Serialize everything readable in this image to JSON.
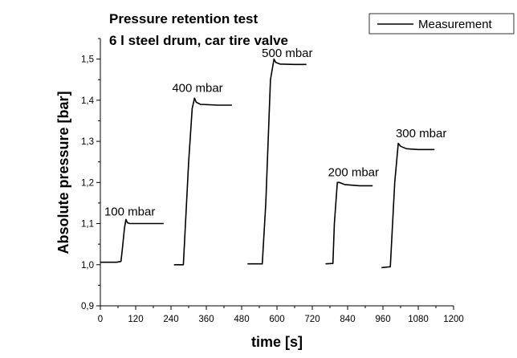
{
  "chart_data": {
    "type": "line",
    "title_lines": [
      "Pressure retention test",
      "6 l steel drum, car tire valve"
    ],
    "xlabel": "time [s]",
    "ylabel": "Absolute pressure [bar]",
    "xlim": [
      0,
      1200
    ],
    "ylim": [
      0.9,
      1.55
    ],
    "x_ticks": [
      0,
      120,
      240,
      360,
      480,
      600,
      720,
      840,
      960,
      1080,
      1200
    ],
    "x_tick_labels": [
      "0",
      "120",
      "240",
      "360",
      "480",
      "600",
      "720",
      "840",
      "960",
      "1080",
      "1200"
    ],
    "y_ticks": [
      0.9,
      1.0,
      1.1,
      1.2,
      1.3,
      1.4,
      1.5
    ],
    "y_tick_labels": [
      "0,9",
      "1,0",
      "1,1",
      "1,2",
      "1,3",
      "1,4",
      "1,5"
    ],
    "grid": false,
    "legend": {
      "placement": "top-right",
      "entries": [
        "Measurement"
      ]
    },
    "series": [
      {
        "name": "Measurement",
        "segments": [
          [
            [
              0,
              1.006
            ],
            [
              55,
              1.006
            ],
            [
              70,
              1.008
            ],
            [
              75,
              1.04
            ],
            [
              82,
              1.09
            ],
            [
              87,
              1.11
            ],
            [
              92,
              1.102
            ],
            [
              100,
              1.1
            ],
            [
              150,
              1.1
            ],
            [
              215,
              1.1
            ]
          ],
          [
            [
              250,
              1.0
            ],
            [
              282,
              1.0
            ],
            [
              300,
              1.25
            ],
            [
              312,
              1.38
            ],
            [
              320,
              1.405
            ],
            [
              326,
              1.395
            ],
            [
              340,
              1.39
            ],
            [
              400,
              1.388
            ],
            [
              447,
              1.388
            ]
          ],
          [
            [
              500,
              1.002
            ],
            [
              550,
              1.002
            ],
            [
              562,
              1.15
            ],
            [
              578,
              1.45
            ],
            [
              590,
              1.5
            ],
            [
              596,
              1.492
            ],
            [
              610,
              1.488
            ],
            [
              660,
              1.487
            ],
            [
              700,
              1.487
            ]
          ],
          [
            [
              765,
              1.002
            ],
            [
              790,
              1.003
            ],
            [
              795,
              1.1
            ],
            [
              805,
              1.2
            ],
            [
              812,
              1.2
            ],
            [
              830,
              1.195
            ],
            [
              880,
              1.192
            ],
            [
              925,
              1.192
            ]
          ],
          [
            [
              955,
              0.993
            ],
            [
              985,
              0.995
            ],
            [
              1000,
              1.2
            ],
            [
              1012,
              1.295
            ],
            [
              1020,
              1.288
            ],
            [
              1040,
              1.282
            ],
            [
              1080,
              1.28
            ],
            [
              1135,
              1.28
            ]
          ]
        ]
      }
    ],
    "annotations": [
      {
        "text": "100 mbar",
        "x": 100,
        "y": 1.12
      },
      {
        "text": "400 mbar",
        "x": 330,
        "y": 1.42
      },
      {
        "text": "500 mbar",
        "x": 635,
        "y": 1.505
      },
      {
        "text": "200 mbar",
        "x": 860,
        "y": 1.215
      },
      {
        "text": "300 mbar",
        "x": 1090,
        "y": 1.31
      }
    ]
  }
}
